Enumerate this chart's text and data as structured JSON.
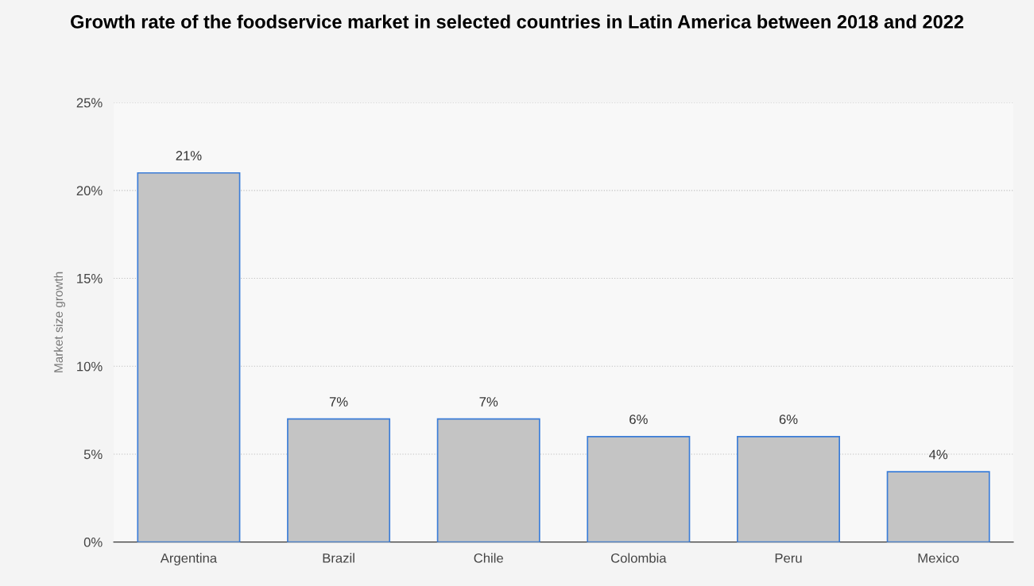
{
  "chart_data": {
    "type": "bar",
    "title": "Growth rate of the foodservice market in selected countries in Latin America between 2018 and 2022",
    "ylabel": "Market size growth",
    "categories": [
      "Argentina",
      "Brazil",
      "Chile",
      "Colombia",
      "Peru",
      "Mexico"
    ],
    "values": [
      21,
      7,
      7,
      6,
      6,
      4
    ],
    "value_labels": [
      "21%",
      "7%",
      "7%",
      "6%",
      "6%",
      "4%"
    ],
    "color": "#c4c4c4",
    "ylim": [
      0,
      25
    ],
    "yticks": [
      {
        "value": 0,
        "label": "0%"
      },
      {
        "value": 5,
        "label": "5%"
      },
      {
        "value": 10,
        "label": "10%"
      },
      {
        "value": 15,
        "label": "15%"
      },
      {
        "value": 20,
        "label": "20%"
      },
      {
        "value": 25,
        "label": "25%"
      }
    ],
    "grid": "y"
  }
}
